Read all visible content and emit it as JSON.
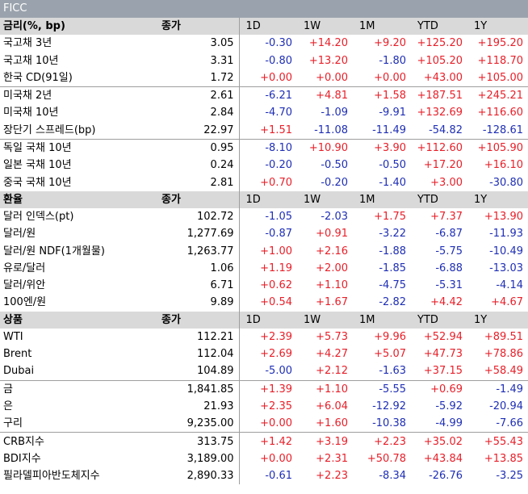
{
  "banner": "FICC",
  "sections": [
    {
      "title": "금리(%, bp)",
      "price_header": "종가",
      "period_headers": [
        "1D",
        "1W",
        "1M",
        "YTD",
        "1Y"
      ],
      "groups": [
        [
          {
            "name": "국고채 3년",
            "price": "3.05",
            "changes": [
              "-0.30",
              "+14.20",
              "+9.20",
              "+125.20",
              "+195.20"
            ]
          },
          {
            "name": "국고채 10년",
            "price": "3.31",
            "changes": [
              "-0.80",
              "+13.20",
              "-1.80",
              "+105.20",
              "+118.70"
            ]
          },
          {
            "name": "한국 CD(91일)",
            "price": "1.72",
            "changes": [
              "+0.00",
              "+0.00",
              "+0.00",
              "+43.00",
              "+105.00"
            ]
          }
        ],
        [
          {
            "name": "미국채 2년",
            "price": "2.61",
            "changes": [
              "-6.21",
              "+4.81",
              "+1.58",
              "+187.51",
              "+245.21"
            ]
          },
          {
            "name": "미국채 10년",
            "price": "2.84",
            "changes": [
              "-4.70",
              "-1.09",
              "-9.91",
              "+132.69",
              "+116.60"
            ]
          },
          {
            "name": "장단기 스프레드(bp)",
            "price": "22.97",
            "changes": [
              "+1.51",
              "-11.08",
              "-11.49",
              "-54.82",
              "-128.61"
            ]
          }
        ],
        [
          {
            "name": "독일 국채 10년",
            "price": "0.95",
            "changes": [
              "-8.10",
              "+10.90",
              "+3.90",
              "+112.60",
              "+105.90"
            ]
          },
          {
            "name": "일본 국채 10년",
            "price": "0.24",
            "changes": [
              "-0.20",
              "-0.50",
              "-0.50",
              "+17.20",
              "+16.10"
            ]
          },
          {
            "name": "중국 국채 10년",
            "price": "2.81",
            "changes": [
              "+0.70",
              "-0.20",
              "-1.40",
              "+3.00",
              "-30.80"
            ]
          }
        ]
      ]
    },
    {
      "title": "환율",
      "price_header": "종가",
      "period_headers": [
        "1D",
        "1W",
        "1M",
        "YTD",
        "1Y"
      ],
      "groups": [
        [
          {
            "name": "달러 인덱스(pt)",
            "price": "102.72",
            "changes": [
              "-1.05",
              "-2.03",
              "+1.75",
              "+7.37",
              "+13.90"
            ]
          },
          {
            "name": "달러/원",
            "price": "1,277.69",
            "changes": [
              "-0.87",
              "+0.91",
              "-3.22",
              "-6.87",
              "-11.93"
            ]
          },
          {
            "name": "달러/원 NDF(1개월물)",
            "price": "1,263.77",
            "changes": [
              "+1.00",
              "+2.16",
              "-1.88",
              "-5.75",
              "-10.49"
            ]
          },
          {
            "name": "유로/달러",
            "price": "1.06",
            "changes": [
              "+1.19",
              "+2.00",
              "-1.85",
              "-6.88",
              "-13.03"
            ]
          },
          {
            "name": "달러/위안",
            "price": "6.71",
            "changes": [
              "+0.62",
              "+1.10",
              "-4.75",
              "-5.31",
              "-4.14"
            ]
          },
          {
            "name": "100엔/원",
            "price": "9.89",
            "changes": [
              "+0.54",
              "+1.67",
              "-2.82",
              "+4.42",
              "+4.67"
            ]
          }
        ]
      ]
    },
    {
      "title": "상품",
      "price_header": "종가",
      "period_headers": [
        "1D",
        "1W",
        "1M",
        "YTD",
        "1Y"
      ],
      "groups": [
        [
          {
            "name": "WTI",
            "price": "112.21",
            "changes": [
              "+2.39",
              "+5.73",
              "+9.96",
              "+52.94",
              "+89.51"
            ]
          },
          {
            "name": "Brent",
            "price": "112.04",
            "changes": [
              "+2.69",
              "+4.27",
              "+5.07",
              "+47.73",
              "+78.86"
            ]
          },
          {
            "name": "Dubai",
            "price": "104.89",
            "changes": [
              "-5.00",
              "+2.12",
              "-1.63",
              "+37.15",
              "+58.49"
            ]
          }
        ],
        [
          {
            "name": "금",
            "price": "1,841.85",
            "changes": [
              "+1.39",
              "+1.10",
              "-5.55",
              "+0.69",
              "-1.49"
            ]
          },
          {
            "name": "은",
            "price": "21.93",
            "changes": [
              "+2.35",
              "+6.04",
              "-12.92",
              "-5.92",
              "-20.94"
            ]
          },
          {
            "name": "구리",
            "price": "9,235.00",
            "changes": [
              "+0.00",
              "+1.60",
              "-10.38",
              "-4.99",
              "-7.66"
            ]
          }
        ],
        [
          {
            "name": "CRB지수",
            "price": "313.75",
            "changes": [
              "+1.42",
              "+3.19",
              "+2.23",
              "+35.02",
              "+55.43"
            ]
          },
          {
            "name": "BDI지수",
            "price": "3,189.00",
            "changes": [
              "+0.00",
              "+2.31",
              "+50.78",
              "+43.84",
              "+13.85"
            ]
          },
          {
            "name": "필라델피아반도체지수",
            "price": "2,890.33",
            "changes": [
              "-0.61",
              "+2.23",
              "-8.34",
              "-26.76",
              "-3.25"
            ]
          }
        ]
      ]
    }
  ]
}
